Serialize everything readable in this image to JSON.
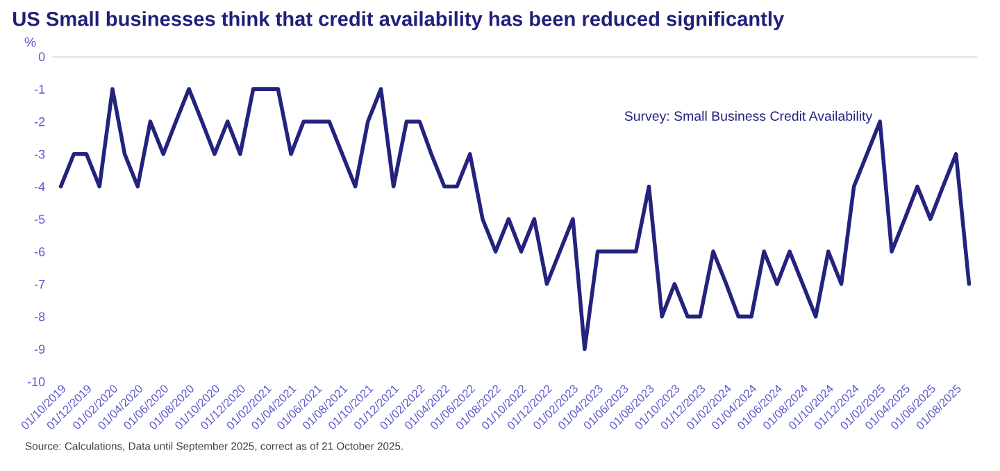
{
  "chart_data": {
    "type": "line",
    "title": "US Small businesses think that credit availability has been reduced significantly",
    "ylabel": "%",
    "annotations": [
      "Source: Calculations, Data until September 2025, correct as of 21 October 2025."
    ],
    "x": [
      "2019-10",
      "2019-11",
      "2019-12",
      "2020-01",
      "2020-02",
      "2020-03",
      "2020-04",
      "2020-05",
      "2020-06",
      "2020-07",
      "2020-08",
      "2020-09",
      "2020-10",
      "2020-11",
      "2020-12",
      "2021-01",
      "2021-02",
      "2021-03",
      "2021-04",
      "2021-05",
      "2021-06",
      "2021-07",
      "2021-08",
      "2021-09",
      "2021-10",
      "2021-11",
      "2021-12",
      "2022-01",
      "2022-02",
      "2022-03",
      "2022-04",
      "2022-05",
      "2022-06",
      "2022-07",
      "2022-08",
      "2022-09",
      "2022-10",
      "2022-11",
      "2022-12",
      "2023-01",
      "2023-02",
      "2023-03",
      "2023-04",
      "2023-05",
      "2023-06",
      "2023-07",
      "2023-08",
      "2023-09",
      "2023-10",
      "2023-11",
      "2023-12",
      "2024-01",
      "2024-02",
      "2024-03",
      "2024-04",
      "2024-05",
      "2024-06",
      "2024-07",
      "2024-08",
      "2024-09",
      "2024-10",
      "2024-11",
      "2024-12",
      "2025-01",
      "2025-02",
      "2025-03",
      "2025-04",
      "2025-05",
      "2025-06",
      "2025-07",
      "2025-08",
      "2025-09"
    ],
    "series": [
      {
        "name": "Survey: Small Business Credit Availability",
        "color": "#23237e",
        "values": [
          -4,
          -3,
          -3,
          -4,
          -1,
          -3,
          -4,
          -2,
          -3,
          -2,
          -1,
          -2,
          -3,
          -2,
          -3,
          -1,
          -1,
          -1,
          -3,
          -2,
          -2,
          -2,
          -3,
          -4,
          -2,
          -1,
          -4,
          -2,
          -2,
          -3,
          -4,
          -4,
          -3,
          -5,
          -6,
          -5,
          -6,
          -5,
          -7,
          -6,
          -5,
          -9,
          -6,
          -6,
          -6,
          -6,
          -4,
          -8,
          -7,
          -8,
          -8,
          -6,
          -7,
          -8,
          -8,
          -6,
          -7,
          -6,
          -7,
          -8,
          -6,
          -7,
          -4,
          -3,
          -2,
          -6,
          -5,
          -4,
          -5,
          -4,
          -3,
          -7
        ]
      }
    ],
    "xlim": [
      "2019-09-10",
      "2025-09-20"
    ],
    "xticks": [
      {
        "value": "2019-10",
        "label": "01/10/2019"
      },
      {
        "value": "2019-12",
        "label": "01/12/2019"
      },
      {
        "value": "2020-02",
        "label": "01/02/2020"
      },
      {
        "value": "2020-04",
        "label": "01/04/2020"
      },
      {
        "value": "2020-06",
        "label": "01/06/2020"
      },
      {
        "value": "2020-08",
        "label": "01/08/2020"
      },
      {
        "value": "2020-10",
        "label": "01/10/2020"
      },
      {
        "value": "2020-12",
        "label": "01/12/2020"
      },
      {
        "value": "2021-02",
        "label": "01/02/2021"
      },
      {
        "value": "2021-04",
        "label": "01/04/2021"
      },
      {
        "value": "2021-06",
        "label": "01/06/2021"
      },
      {
        "value": "2021-08",
        "label": "01/08/2021"
      },
      {
        "value": "2021-10",
        "label": "01/10/2021"
      },
      {
        "value": "2021-12",
        "label": "01/12/2021"
      },
      {
        "value": "2022-02",
        "label": "01/02/2022"
      },
      {
        "value": "2022-04",
        "label": "01/04/2022"
      },
      {
        "value": "2022-06",
        "label": "01/06/2022"
      },
      {
        "value": "2022-08",
        "label": "01/08/2022"
      },
      {
        "value": "2022-10",
        "label": "01/10/2022"
      },
      {
        "value": "2022-12",
        "label": "01/12/2022"
      },
      {
        "value": "2023-02",
        "label": "01/02/2023"
      },
      {
        "value": "2023-04",
        "label": "01/04/2023"
      },
      {
        "value": "2023-06",
        "label": "01/06/2023"
      },
      {
        "value": "2023-08",
        "label": "01/08/2023"
      },
      {
        "value": "2023-10",
        "label": "01/10/2023"
      },
      {
        "value": "2023-12",
        "label": "01/12/2023"
      },
      {
        "value": "2024-02",
        "label": "01/02/2024"
      },
      {
        "value": "2024-04",
        "label": "01/04/2024"
      },
      {
        "value": "2024-06",
        "label": "01/06/2024"
      },
      {
        "value": "2024-08",
        "label": "01/08/2024"
      },
      {
        "value": "2024-10",
        "label": "01/10/2024"
      },
      {
        "value": "2024-12",
        "label": "01/12/2024"
      },
      {
        "value": "2025-02",
        "label": "01/02/2025"
      },
      {
        "value": "2025-04",
        "label": "01/04/2025"
      },
      {
        "value": "2025-06",
        "label": "01/06/2025"
      },
      {
        "value": "2025-08",
        "label": "01/08/2025"
      }
    ],
    "ylim": [
      -10,
      0
    ],
    "yticks": [
      -10,
      -9,
      -8,
      -7,
      -6,
      -5,
      -4,
      -3,
      -2,
      -1,
      0
    ],
    "ref_lines": [
      {
        "axis": "y",
        "value": 0,
        "color": "#d9d9d9"
      }
    ],
    "grid": false,
    "legend": "top right",
    "marker": "none",
    "line_style": "solid"
  }
}
